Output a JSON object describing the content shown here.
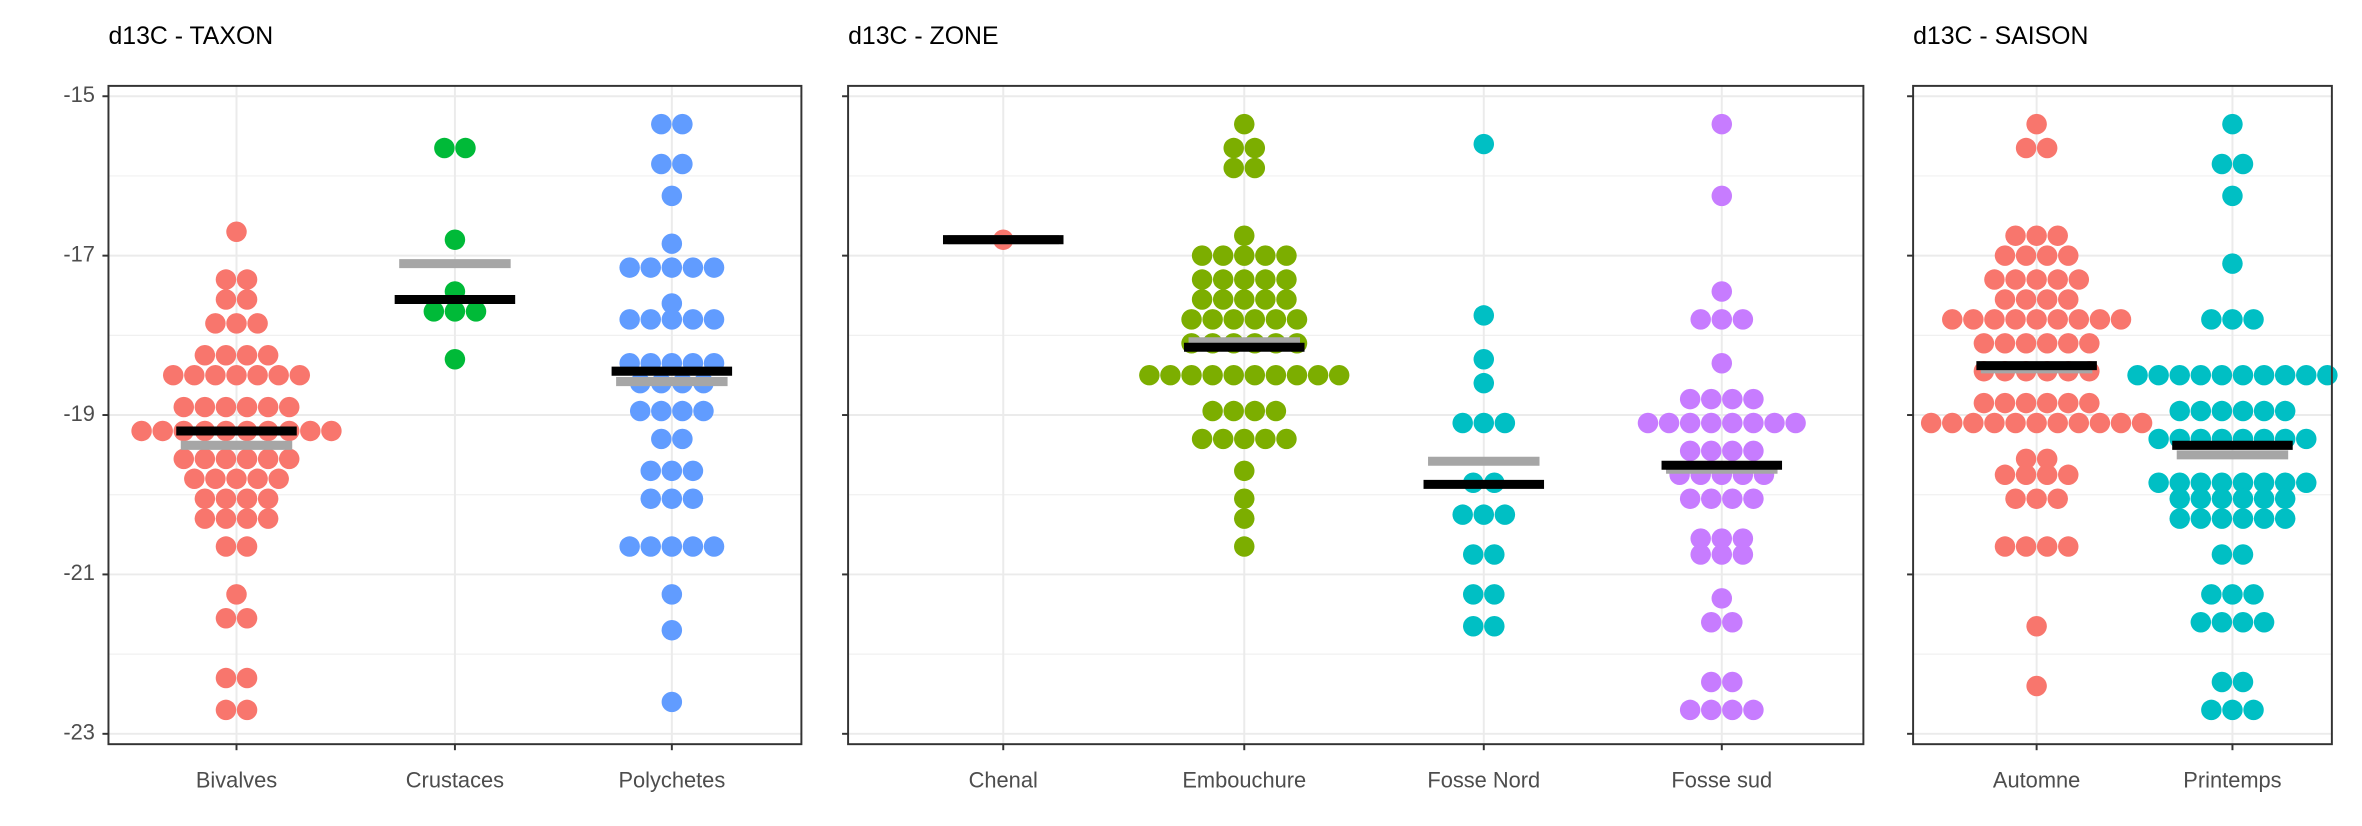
{
  "chart_data": [
    {
      "type": "dotplot",
      "title": "d13C - TAXON",
      "show_ytick_labels": true,
      "ylim": [
        -23.13,
        -14.87
      ],
      "yticks": [
        -23,
        -21,
        -19,
        -17,
        -15
      ],
      "categories": [
        "Bivalves",
        "Crustaces",
        "Polychetes"
      ],
      "colors": [
        "#F8766D",
        "#00BA38",
        "#619CFF"
      ],
      "values": [
        [
          -16.7,
          -17.3,
          -17.3,
          -17.55,
          -17.55,
          -17.85,
          -17.85,
          -17.85,
          -18.25,
          -18.25,
          -18.25,
          -18.25,
          -18.5,
          -18.5,
          -18.5,
          -18.5,
          -18.5,
          -18.5,
          -18.5,
          -18.9,
          -18.9,
          -18.9,
          -18.9,
          -18.9,
          -18.9,
          -19.2,
          -19.2,
          -19.2,
          -19.2,
          -19.2,
          -19.2,
          -19.2,
          -19.2,
          -19.2,
          -19.2,
          -19.55,
          -19.55,
          -19.55,
          -19.55,
          -19.55,
          -19.55,
          -19.8,
          -19.8,
          -19.8,
          -19.8,
          -19.8,
          -20.05,
          -20.05,
          -20.05,
          -20.05,
          -20.3,
          -20.3,
          -20.3,
          -20.3,
          -20.65,
          -20.65,
          -21.25,
          -21.55,
          -21.55,
          -22.3,
          -22.3,
          -22.7,
          -22.7
        ],
        [
          -15.65,
          -15.65,
          -16.8,
          -17.45,
          -17.7,
          -17.7,
          -17.7,
          -18.3
        ],
        [
          -15.35,
          -15.35,
          -15.85,
          -15.85,
          -16.25,
          -16.85,
          -17.15,
          -17.15,
          -17.15,
          -17.15,
          -17.15,
          -17.6,
          -17.8,
          -17.8,
          -17.8,
          -17.8,
          -17.8,
          -18.35,
          -18.35,
          -18.35,
          -18.35,
          -18.35,
          -18.6,
          -18.6,
          -18.6,
          -18.6,
          -18.95,
          -18.95,
          -18.95,
          -18.95,
          -19.3,
          -19.3,
          -19.7,
          -19.7,
          -19.7,
          -20.05,
          -20.05,
          -20.05,
          -20.65,
          -20.65,
          -20.65,
          -20.65,
          -20.65,
          -21.25,
          -21.7,
          -22.6
        ]
      ],
      "black_bars": [
        -19.2,
        -17.55,
        -18.45
      ],
      "gray_bars": [
        -19.38,
        -17.1,
        -18.58
      ]
    },
    {
      "type": "dotplot",
      "title": "d13C - ZONE",
      "show_ytick_labels": false,
      "ylim": [
        -23.13,
        -14.87
      ],
      "yticks": [
        -23,
        -21,
        -19,
        -17,
        -15
      ],
      "categories": [
        "Chenal",
        "Embouchure",
        "Fosse Nord",
        "Fosse sud"
      ],
      "colors": [
        "#F8766D",
        "#7CAE00",
        "#00BFC4",
        "#C77CFF"
      ],
      "values": [
        [
          -16.8
        ],
        [
          -15.35,
          -15.65,
          -15.65,
          -15.9,
          -15.9,
          -16.75,
          -17.0,
          -17.0,
          -17.0,
          -17.0,
          -17.0,
          -17.3,
          -17.3,
          -17.3,
          -17.3,
          -17.3,
          -17.55,
          -17.55,
          -17.55,
          -17.55,
          -17.55,
          -17.8,
          -17.8,
          -17.8,
          -17.8,
          -17.8,
          -17.8,
          -18.1,
          -18.1,
          -18.1,
          -18.1,
          -18.1,
          -18.1,
          -18.5,
          -18.5,
          -18.5,
          -18.5,
          -18.5,
          -18.5,
          -18.5,
          -18.5,
          -18.5,
          -18.5,
          -18.95,
          -18.95,
          -18.95,
          -18.95,
          -19.3,
          -19.3,
          -19.3,
          -19.3,
          -19.3,
          -19.7,
          -20.05,
          -20.3,
          -20.65
        ],
        [
          -15.6,
          -17.75,
          -18.3,
          -18.6,
          -19.1,
          -19.1,
          -19.1,
          -19.85,
          -19.85,
          -20.25,
          -20.25,
          -20.25,
          -20.75,
          -20.75,
          -21.25,
          -21.25,
          -21.65,
          -21.65
        ],
        [
          -15.35,
          -16.25,
          -17.45,
          -17.8,
          -17.8,
          -17.8,
          -18.35,
          -18.8,
          -18.8,
          -18.8,
          -18.8,
          -19.1,
          -19.1,
          -19.1,
          -19.1,
          -19.1,
          -19.1,
          -19.1,
          -19.1,
          -19.45,
          -19.45,
          -19.45,
          -19.45,
          -19.75,
          -19.75,
          -19.75,
          -19.75,
          -19.75,
          -20.05,
          -20.05,
          -20.05,
          -20.05,
          -20.55,
          -20.55,
          -20.55,
          -20.75,
          -20.75,
          -20.75,
          -21.3,
          -21.6,
          -21.6,
          -22.35,
          -22.35,
          -22.7,
          -22.7,
          -22.7,
          -22.7
        ]
      ],
      "black_bars": [
        -16.8,
        -18.15,
        -19.87,
        -19.63
      ],
      "gray_bars": [
        -16.8,
        -18.08,
        -19.58,
        -19.68
      ]
    },
    {
      "type": "dotplot",
      "title": "d13C - SAISON",
      "show_ytick_labels": false,
      "ylim": [
        -23.13,
        -14.87
      ],
      "yticks": [
        -23,
        -21,
        -19,
        -17,
        -15
      ],
      "categories": [
        "Automne",
        "Printemps"
      ],
      "colors": [
        "#F8766D",
        "#00BFC4"
      ],
      "values": [
        [
          -15.35,
          -15.65,
          -15.65,
          -16.75,
          -16.75,
          -16.75,
          -17.0,
          -17.0,
          -17.0,
          -17.0,
          -17.3,
          -17.3,
          -17.3,
          -17.3,
          -17.3,
          -17.55,
          -17.55,
          -17.55,
          -17.55,
          -17.8,
          -17.8,
          -17.8,
          -17.8,
          -17.8,
          -17.8,
          -17.8,
          -17.8,
          -17.8,
          -18.1,
          -18.1,
          -18.1,
          -18.1,
          -18.1,
          -18.1,
          -18.45,
          -18.45,
          -18.45,
          -18.45,
          -18.45,
          -18.45,
          -18.85,
          -18.85,
          -18.85,
          -18.85,
          -18.85,
          -18.85,
          -19.1,
          -19.1,
          -19.1,
          -19.1,
          -19.1,
          -19.1,
          -19.1,
          -19.1,
          -19.1,
          -19.1,
          -19.1,
          -19.55,
          -19.55,
          -19.75,
          -19.75,
          -19.75,
          -19.75,
          -20.05,
          -20.05,
          -20.05,
          -20.65,
          -20.65,
          -20.65,
          -20.65,
          -21.65,
          -22.4
        ],
        [
          -15.35,
          -15.85,
          -15.85,
          -16.25,
          -17.1,
          -17.8,
          -17.8,
          -17.8,
          -18.5,
          -18.5,
          -18.5,
          -18.5,
          -18.5,
          -18.5,
          -18.5,
          -18.5,
          -18.5,
          -18.5,
          -18.95,
          -18.95,
          -18.95,
          -18.95,
          -18.95,
          -18.95,
          -19.3,
          -19.3,
          -19.3,
          -19.3,
          -19.3,
          -19.3,
          -19.3,
          -19.3,
          -19.85,
          -19.85,
          -19.85,
          -19.85,
          -19.85,
          -19.85,
          -19.85,
          -19.85,
          -20.05,
          -20.05,
          -20.05,
          -20.05,
          -20.05,
          -20.05,
          -20.3,
          -20.3,
          -20.3,
          -20.3,
          -20.3,
          -20.3,
          -20.75,
          -20.75,
          -21.25,
          -21.25,
          -21.25,
          -21.6,
          -21.6,
          -21.6,
          -21.6,
          -22.35,
          -22.35,
          -22.7,
          -22.7,
          -22.7
        ]
      ],
      "black_bars": [
        -18.38,
        -19.38
      ],
      "gray_bars": [
        -18.42,
        -19.5
      ]
    }
  ]
}
